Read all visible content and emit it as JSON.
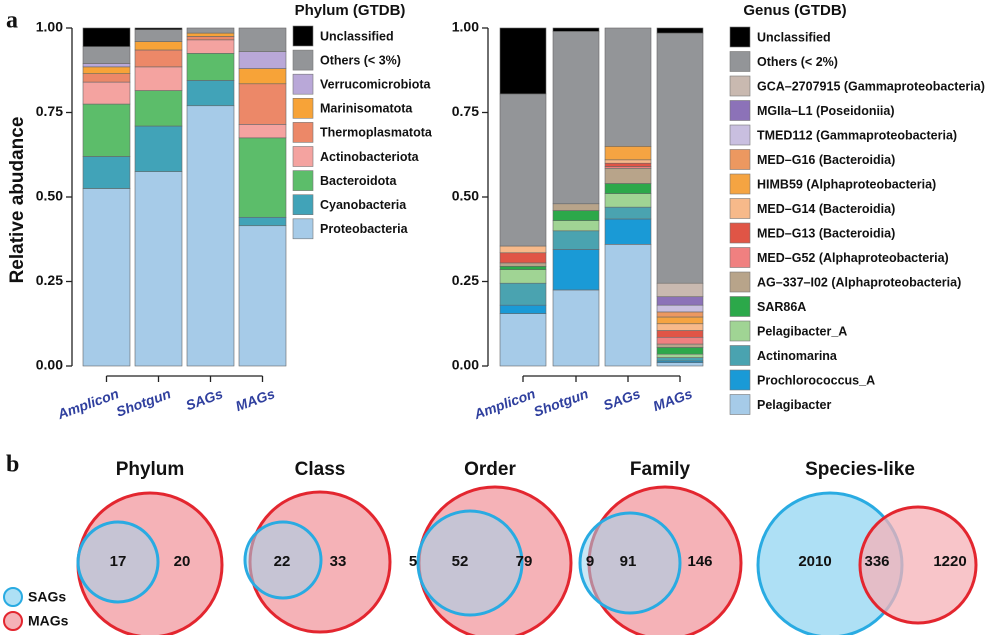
{
  "panel_labels": [
    "a",
    "b"
  ],
  "chart_data": [
    {
      "type": "stacked-bar",
      "title": "Phylum (GTDB)",
      "y_label": "Relative abudance",
      "categories": [
        "Amplicon",
        "Shotgun",
        "SAGs",
        "MAGs"
      ],
      "ylim": [
        0,
        1
      ],
      "yticks": [
        {
          "value": 0,
          "label": "0.00"
        },
        {
          "value": 0.25,
          "label": "0.25"
        },
        {
          "value": 0.5,
          "label": "0.50"
        },
        {
          "value": 0.75,
          "label": "0.75"
        },
        {
          "value": 1,
          "label": "1.00"
        }
      ],
      "legend": "right",
      "series": [
        {
          "name": "Proteobacteria",
          "color": "#a6cbe8",
          "values": [
            0.525,
            0.575,
            0.77,
            0.415
          ]
        },
        {
          "name": "Cyanobacteria",
          "color": "#41a3b8",
          "values": [
            0.095,
            0.135,
            0.075,
            0.025
          ]
        },
        {
          "name": "Bacteroidota",
          "color": "#5cbd6a",
          "values": [
            0.155,
            0.105,
            0.08,
            0.235
          ]
        },
        {
          "name": "Actinobacteriota",
          "color": "#f4a3a0",
          "values": [
            0.065,
            0.07,
            0.04,
            0.04
          ]
        },
        {
          "name": "Thermoplasmatota",
          "color": "#ec8868",
          "values": [
            0.025,
            0.05,
            0.01,
            0.12
          ]
        },
        {
          "name": "Marinisomatota",
          "color": "#f7a338",
          "values": [
            0.02,
            0.025,
            0.01,
            0.045
          ]
        },
        {
          "name": "Verrucomicrobiota",
          "color": "#b9a8d8",
          "values": [
            0.01,
            0,
            0,
            0.05
          ]
        },
        {
          "name": "Others (< 3%)",
          "color": "#939598",
          "values": [
            0.05,
            0.035,
            0.015,
            0.07
          ]
        },
        {
          "name": "Unclassified",
          "color": "#000000",
          "values": [
            0.055,
            0.005,
            0,
            0
          ]
        }
      ]
    },
    {
      "type": "stacked-bar",
      "title": "Genus (GTDB)",
      "categories": [
        "Amplicon",
        "Shotgun",
        "SAGs",
        "MAGs"
      ],
      "ylim": [
        0,
        1
      ],
      "yticks": [
        {
          "value": 0,
          "label": "0.00"
        },
        {
          "value": 0.25,
          "label": "0.25"
        },
        {
          "value": 0.5,
          "label": "0.50"
        },
        {
          "value": 0.75,
          "label": "0.75"
        },
        {
          "value": 1,
          "label": "1.00"
        }
      ],
      "legend": "right",
      "series": [
        {
          "name": "Pelagibacter",
          "color": "#a6cbe8",
          "values": [
            0.155,
            0.225,
            0.36,
            0.01
          ]
        },
        {
          "name": "Prochlorococcus_A",
          "color": "#1a9ad6",
          "values": [
            0.025,
            0.12,
            0.075,
            0.005
          ]
        },
        {
          "name": "Actinomarina",
          "color": "#4aa3b0",
          "values": [
            0.065,
            0.055,
            0.035,
            0.01
          ]
        },
        {
          "name": "Pelagibacter_A",
          "color": "#a0d494",
          "values": [
            0.04,
            0.03,
            0.04,
            0.01
          ]
        },
        {
          "name": "SAR86A",
          "color": "#2ca84a",
          "values": [
            0.01,
            0.03,
            0.03,
            0.02
          ]
        },
        {
          "name": "AG–337–I02 (Alphaproteobacteria)",
          "color": "#b8a48a",
          "values": [
            0.01,
            0.02,
            0.045,
            0.01
          ]
        },
        {
          "name": "MED–G52 (Alphaproteobacteria)",
          "color": "#f08080",
          "values": [
            0,
            0,
            0.005,
            0.02
          ]
        },
        {
          "name": "MED–G13 (Bacteroidia)",
          "color": "#e05546",
          "values": [
            0.03,
            0,
            0.01,
            0.02
          ]
        },
        {
          "name": "MED–G14 (Bacteroidia)",
          "color": "#f7b98a",
          "values": [
            0.02,
            0,
            0.01,
            0.02
          ]
        },
        {
          "name": "HIMB59 (Alphaproteobacteria)",
          "color": "#f5a442",
          "values": [
            0,
            0,
            0.04,
            0.02
          ]
        },
        {
          "name": "MED–G16 (Bacteroidia)",
          "color": "#ec9860",
          "values": [
            0,
            0,
            0,
            0.015
          ]
        },
        {
          "name": "TMED112 (Gammaproteobacteria)",
          "color": "#c9bfe0",
          "values": [
            0,
            0,
            0,
            0.02
          ]
        },
        {
          "name": "MGIIa–L1 (Poseidoniia)",
          "color": "#8c72b8",
          "values": [
            0,
            0,
            0,
            0.025
          ]
        },
        {
          "name": "GCA–2707915 (Gammaproteobacteria)",
          "color": "#c9b9b0",
          "values": [
            0,
            0,
            0,
            0.04
          ]
        },
        {
          "name": "Others (< 2%)",
          "color": "#939598",
          "values": [
            0.45,
            0.51,
            0.35,
            0.74
          ]
        },
        {
          "name": "Unclassified",
          "color": "#000000",
          "values": [
            0.195,
            0.01,
            0,
            0.015
          ]
        }
      ]
    },
    {
      "type": "venn",
      "sets": [
        {
          "name": "SAGs",
          "color": "#29abe2"
        },
        {
          "name": "MAGs",
          "color": "#e3262f"
        }
      ],
      "panels": [
        {
          "title": "Phylum",
          "values": [
            null,
            17,
            20
          ]
        },
        {
          "title": "Class",
          "values": [
            null,
            22,
            33
          ]
        },
        {
          "title": "Order",
          "values": [
            5,
            52,
            79
          ]
        },
        {
          "title": "Family",
          "values": [
            9,
            91,
            146
          ]
        },
        {
          "title": "Species-like",
          "values": [
            2010,
            336,
            1220
          ]
        }
      ]
    }
  ]
}
